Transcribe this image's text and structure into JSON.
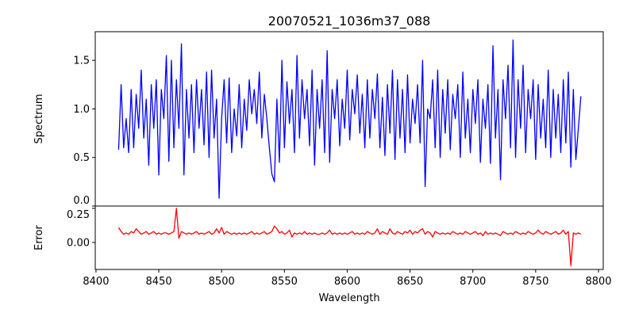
{
  "chart_data": {
    "type": "line",
    "title": "20070521_1036m37_088",
    "xlabel": "Wavelength",
    "xlim": [
      8399.4,
      8803.8
    ],
    "xticks": [
      8400,
      8450,
      8500,
      8550,
      8600,
      8650,
      8700,
      8750,
      8800
    ],
    "x_start": 8418,
    "x_step": 2,
    "panels": [
      {
        "name": "spectrum",
        "ylabel": "Spectrum",
        "ylim": [
          0.0,
          1.795
        ],
        "yticks": [
          0.0,
          0.5,
          1.0,
          1.5
        ],
        "yticklabels": [
          "0.0",
          "0.5",
          "1.0",
          "1.5"
        ],
        "color": "#0000ff",
        "values": [
          0.58,
          1.25,
          0.6,
          0.9,
          0.55,
          1.2,
          0.6,
          1.15,
          0.8,
          1.4,
          0.7,
          1.1,
          0.42,
          1.25,
          0.8,
          1.3,
          0.32,
          1.2,
          0.9,
          1.55,
          0.46,
          1.5,
          0.6,
          1.3,
          0.8,
          1.67,
          0.32,
          1.2,
          0.7,
          1.25,
          0.55,
          1.3,
          0.8,
          1.2,
          0.63,
          1.38,
          0.5,
          1.4,
          0.7,
          1.1,
          0.08,
          0.9,
          1.3,
          0.65,
          1.32,
          0.55,
          1.0,
          0.72,
          1.25,
          0.6,
          1.1,
          0.78,
          1.3,
          0.95,
          1.2,
          0.85,
          1.38,
          0.7,
          1.15,
          0.9,
          0.6,
          0.33,
          0.25,
          1.1,
          0.45,
          1.5,
          0.6,
          1.28,
          0.85,
          1.2,
          0.55,
          1.55,
          0.7,
          1.3,
          0.9,
          1.2,
          0.62,
          1.4,
          0.42,
          1.2,
          0.8,
          1.3,
          0.55,
          1.6,
          0.45,
          1.2,
          0.9,
          1.3,
          0.62,
          1.1,
          0.8,
          1.4,
          0.68,
          1.2,
          0.95,
          1.35,
          0.75,
          1.15,
          0.6,
          1.3,
          0.7,
          1.2,
          0.9,
          1.36,
          0.6,
          1.12,
          0.52,
          1.25,
          0.75,
          1.4,
          0.48,
          1.3,
          0.7,
          1.2,
          0.55,
          1.35,
          0.65,
          1.1,
          0.85,
          1.25,
          0.65,
          1.5,
          0.2,
          1.0,
          0.9,
          1.3,
          0.6,
          1.4,
          0.5,
          1.2,
          0.75,
          1.3,
          0.58,
          1.15,
          0.9,
          1.25,
          0.5,
          1.38,
          0.7,
          1.1,
          0.55,
          1.2,
          0.85,
          1.3,
          0.45,
          1.1,
          0.8,
          1.25,
          0.44,
          1.65,
          0.7,
          1.2,
          0.27,
          1.3,
          0.9,
          1.45,
          0.6,
          1.71,
          0.5,
          1.3,
          0.8,
          1.45,
          0.55,
          1.2,
          0.9,
          1.3,
          0.48,
          1.25,
          0.7,
          1.1,
          0.6,
          1.4,
          0.5,
          1.2,
          0.7,
          1.15,
          0.55,
          1.3,
          0.65,
          1.38,
          0.4,
          1.2,
          0.48,
          0.8,
          1.13
        ]
      },
      {
        "name": "error",
        "ylabel": "Error",
        "ylim": [
          -0.198,
          0.267
        ],
        "yticks": [
          0.0,
          0.25
        ],
        "yticklabels": [
          "0.00",
          "0.25"
        ],
        "color": "#ff0000",
        "values": [
          0.11,
          0.08,
          0.06,
          0.07,
          0.06,
          0.08,
          0.07,
          0.1,
          0.08,
          0.06,
          0.07,
          0.08,
          0.06,
          0.07,
          0.08,
          0.06,
          0.07,
          0.06,
          0.07,
          0.07,
          0.06,
          0.07,
          0.08,
          0.25,
          0.03,
          0.08,
          0.07,
          0.06,
          0.07,
          0.06,
          0.07,
          0.08,
          0.06,
          0.07,
          0.06,
          0.07,
          0.08,
          0.06,
          0.07,
          0.1,
          0.07,
          0.11,
          0.06,
          0.08,
          0.07,
          0.06,
          0.07,
          0.06,
          0.07,
          0.06,
          0.07,
          0.06,
          0.07,
          0.08,
          0.06,
          0.07,
          0.06,
          0.07,
          0.08,
          0.06,
          0.07,
          0.08,
          0.12,
          0.1,
          0.07,
          0.08,
          0.06,
          0.07,
          0.09,
          0.04,
          0.07,
          0.06,
          0.07,
          0.06,
          0.08,
          0.06,
          0.07,
          0.06,
          0.07,
          0.06,
          0.06,
          0.07,
          0.06,
          0.07,
          0.09,
          0.06,
          0.07,
          0.06,
          0.07,
          0.06,
          0.07,
          0.06,
          0.07,
          0.08,
          0.06,
          0.07,
          0.06,
          0.07,
          0.06,
          0.08,
          0.07,
          0.06,
          0.07,
          0.1,
          0.06,
          0.08,
          0.07,
          0.06,
          0.1,
          0.07,
          0.06,
          0.08,
          0.07,
          0.06,
          0.08,
          0.07,
          0.09,
          0.06,
          0.08,
          0.07,
          0.09,
          0.1,
          0.06,
          0.08,
          0.07,
          0.04,
          0.08,
          0.07,
          0.06,
          0.07,
          0.06,
          0.07,
          0.06,
          0.08,
          0.07,
          0.06,
          0.07,
          0.06,
          0.08,
          0.07,
          0.06,
          0.07,
          0.08,
          0.06,
          0.07,
          0.05,
          0.08,
          0.06,
          0.07,
          0.06,
          0.07,
          0.06,
          0.05,
          0.08,
          0.07,
          0.06,
          0.07,
          0.06,
          0.08,
          0.07,
          0.06,
          0.07,
          0.06,
          0.08,
          0.07,
          0.06,
          0.07,
          0.09,
          0.07,
          0.06,
          0.08,
          0.07,
          0.06,
          0.07,
          0.08,
          0.06,
          0.07,
          0.09,
          0.06,
          0.08,
          -0.17,
          0.07,
          0.06,
          0.07,
          0.06
        ]
      }
    ]
  }
}
